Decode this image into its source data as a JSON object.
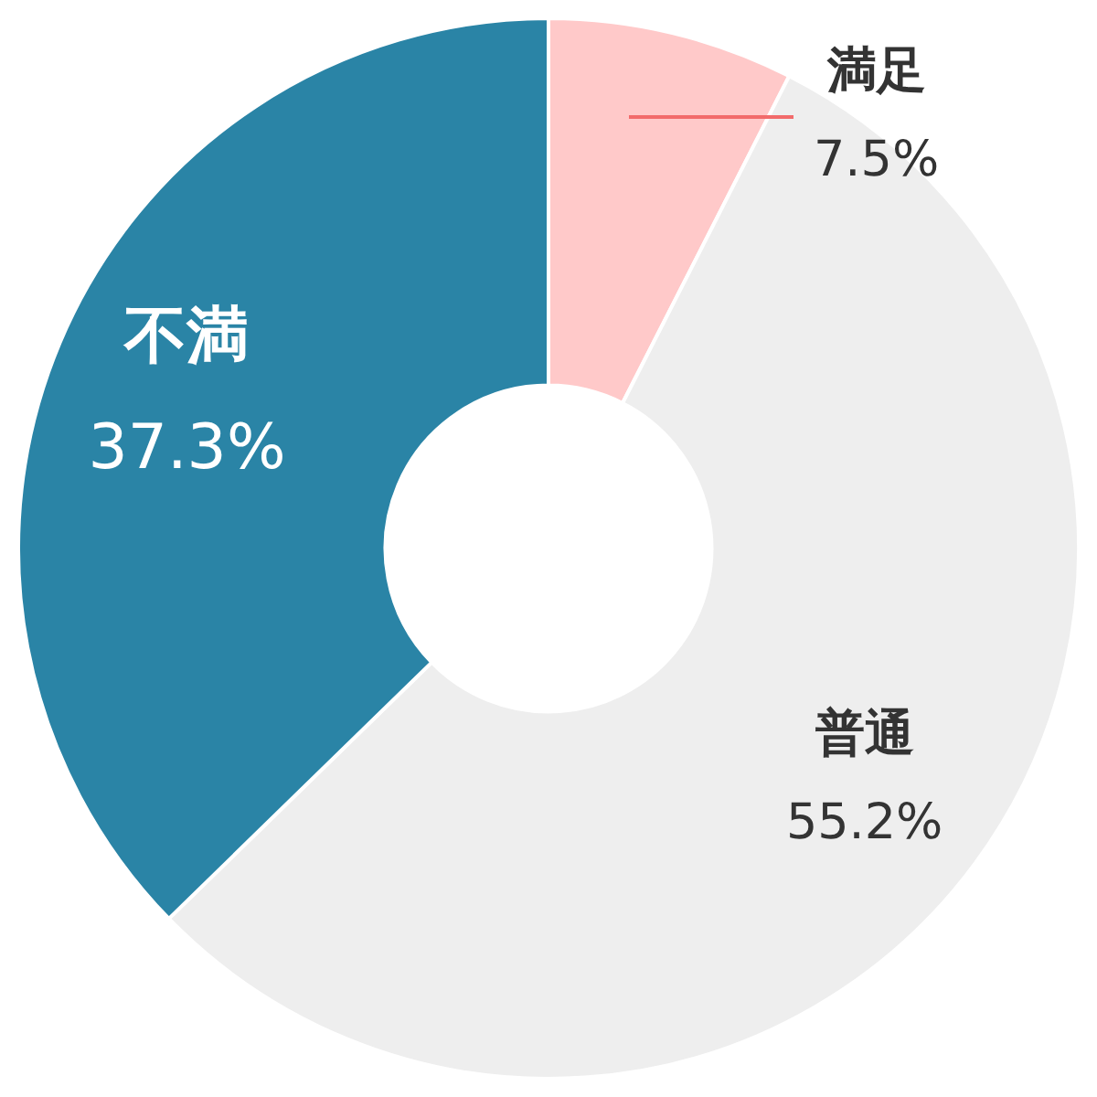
{
  "chart_data": {
    "type": "donut",
    "categories": [
      "満足",
      "普通",
      "不満"
    ],
    "values": [
      7.5,
      55.2,
      37.3
    ],
    "colors": [
      "#ffc9c9",
      "#eeeeee",
      "#2a84a6"
    ],
    "value_labels": [
      "7.5%",
      "55.2%",
      "37.3%"
    ],
    "legend": false
  }
}
